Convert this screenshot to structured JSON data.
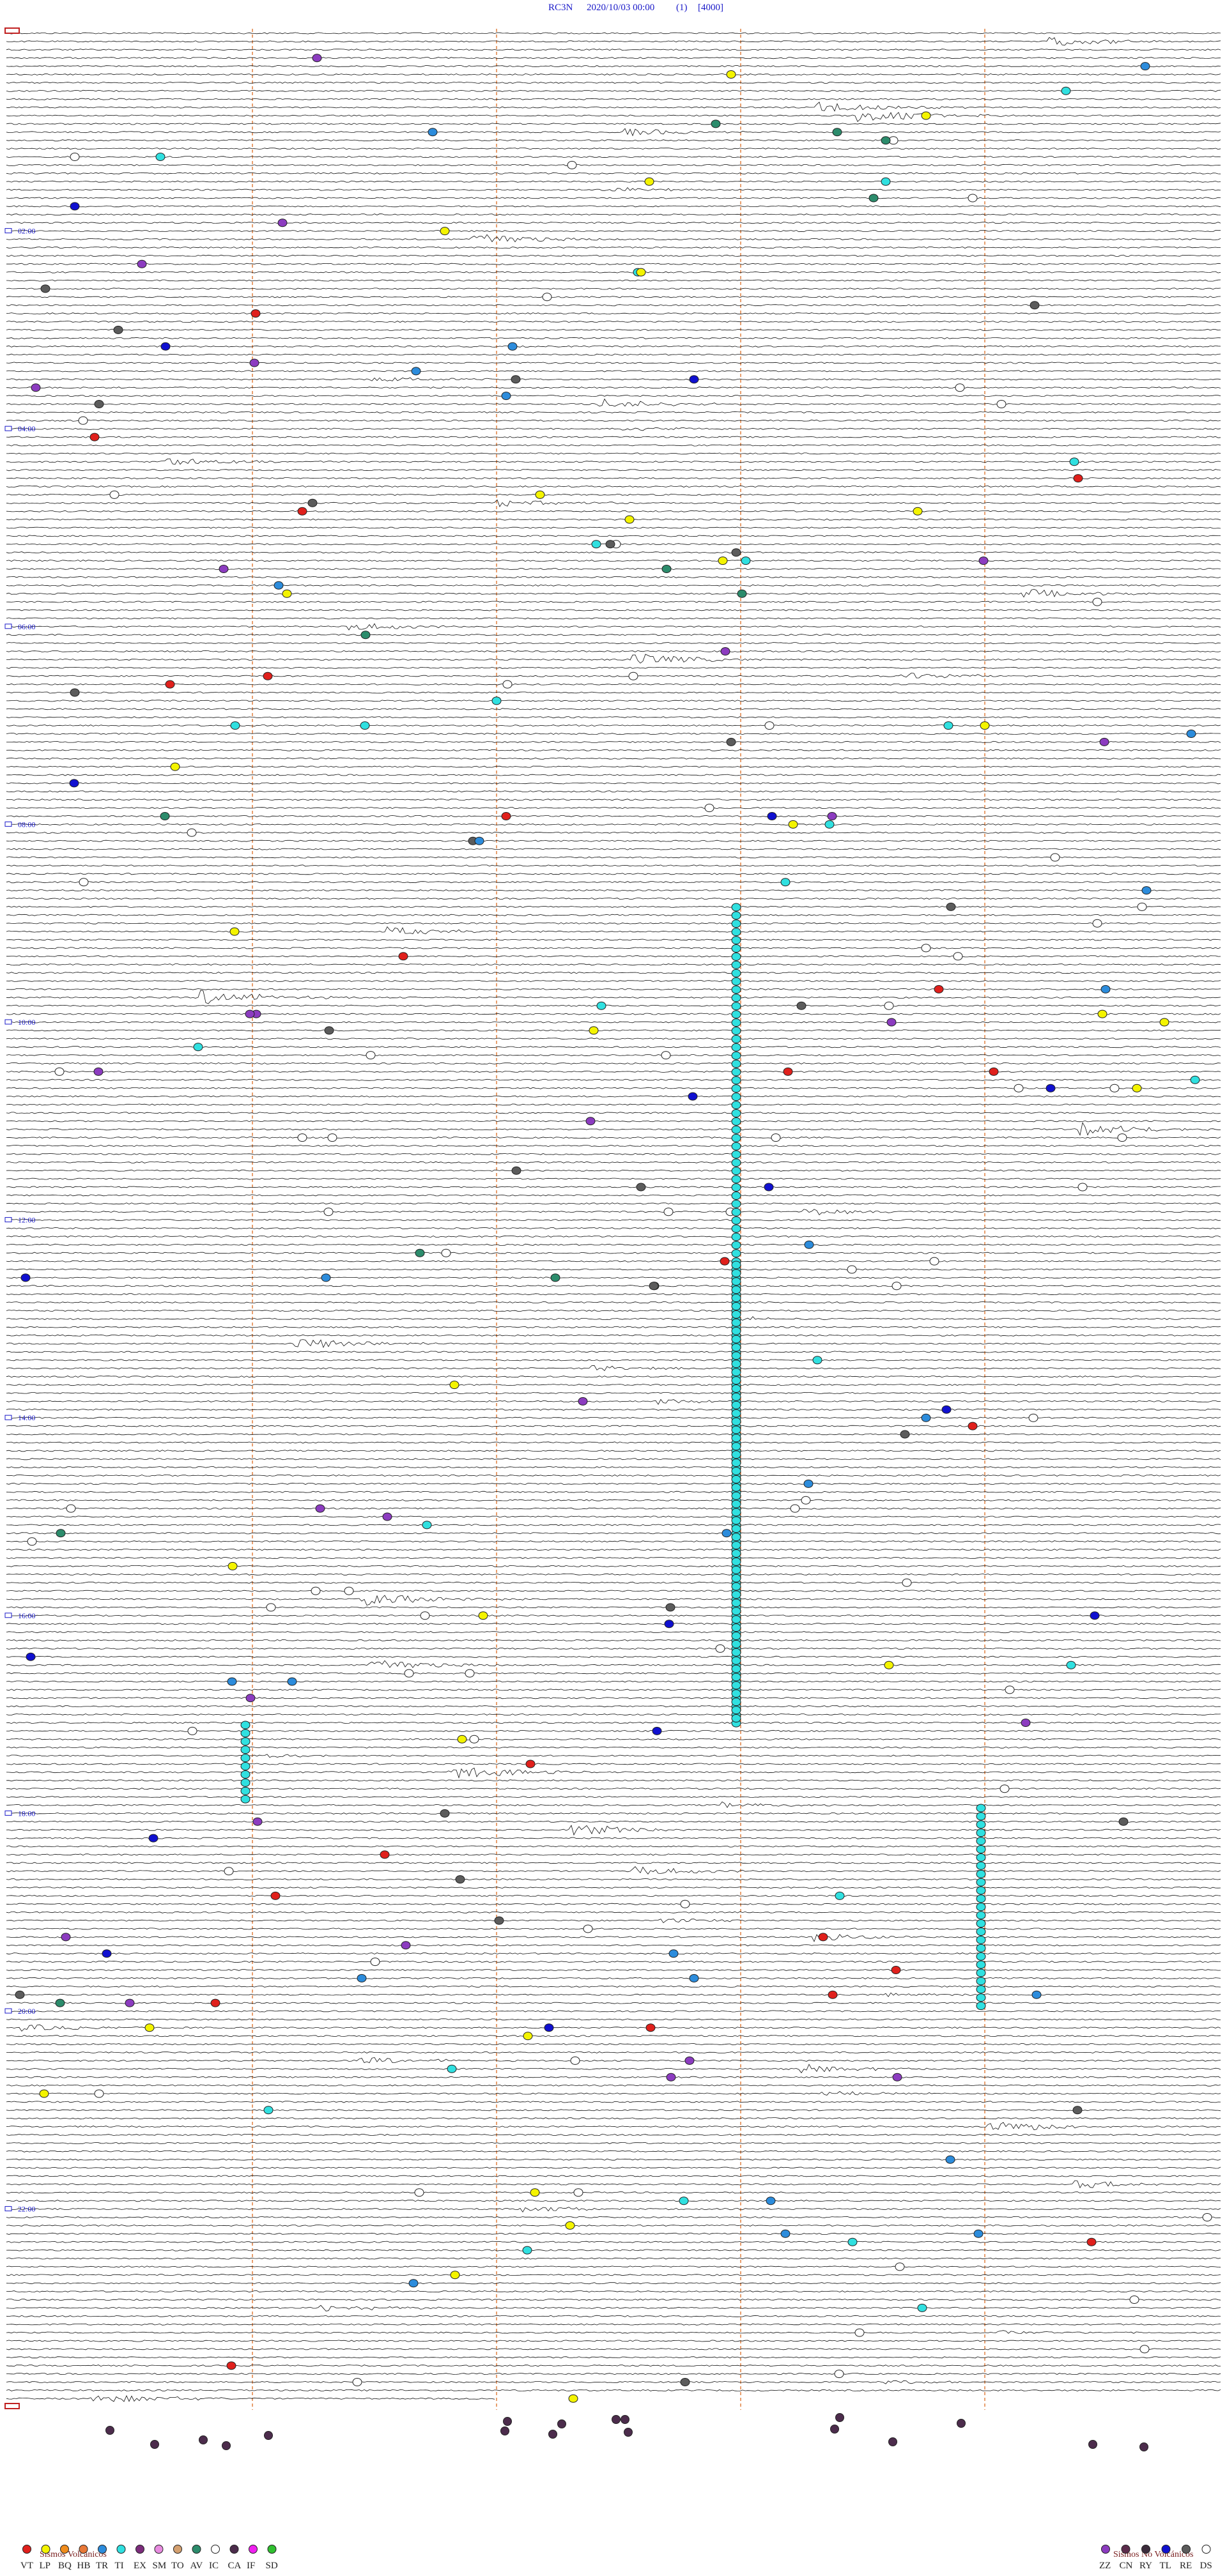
{
  "header": {
    "station": "RC3N",
    "datetime": "2020/10/03 00:00",
    "channel": "(1)",
    "scale": "[4000]"
  },
  "hour_labels": [
    "02:00",
    "04:00",
    "06:00",
    "08:00",
    "10:00",
    "12:00",
    "14:00",
    "16:00",
    "18:00",
    "20:00",
    "22:00"
  ],
  "legend": {
    "volcanic": {
      "title": "Sismos Volcánicos",
      "items": [
        {
          "code": "VT",
          "color": "#e0201c"
        },
        {
          "code": "LP",
          "color": "#f4f400"
        },
        {
          "code": "BQ",
          "color": "#f08c1c"
        },
        {
          "code": "HB",
          "color": "#e87838"
        },
        {
          "code": "TR",
          "color": "#2c8cdc"
        },
        {
          "code": "TI",
          "color": "#30e0e0"
        },
        {
          "code": "EX",
          "color": "#7c2c7c"
        },
        {
          "code": "SM",
          "color": "#e88ce0"
        },
        {
          "code": "TO",
          "color": "#d4a070"
        },
        {
          "code": "AV",
          "color": "#2c8c6c"
        },
        {
          "code": "IC",
          "color": "#ffffff"
        },
        {
          "code": "CA",
          "color": "#4c2c4c"
        },
        {
          "code": "IF",
          "color": "#f020f0"
        },
        {
          "code": "SD",
          "color": "#30c030"
        }
      ]
    },
    "non_volcanic": {
      "title": "Sismos No Volcánicos",
      "items": [
        {
          "code": "ZZ",
          "color": "#8c3cc0"
        },
        {
          "code": "CN",
          "color": "#5c2c4c"
        },
        {
          "code": "RY",
          "color": "#3c2c3c"
        },
        {
          "code": "TL",
          "color": "#1010d0"
        },
        {
          "code": "RE",
          "color": "#5c5c5c"
        },
        {
          "code": "DS",
          "color": "#ffffff"
        }
      ]
    }
  }
}
